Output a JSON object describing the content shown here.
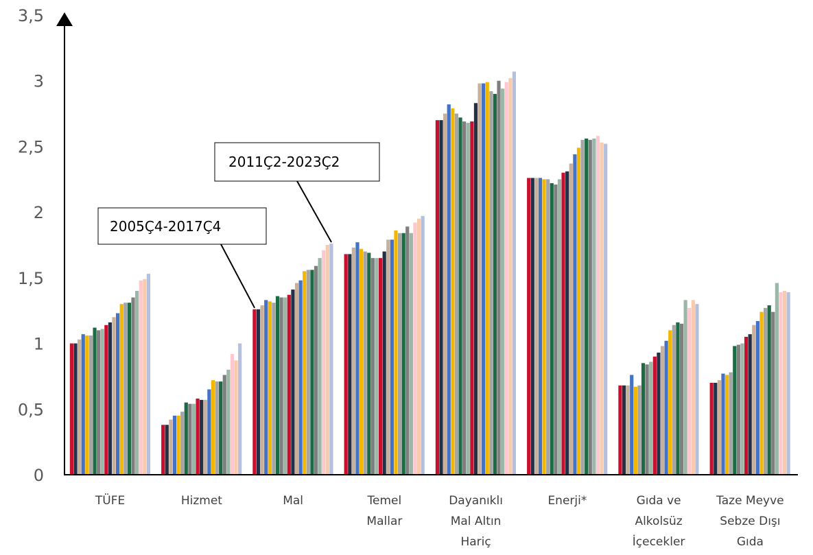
{
  "chart_data": {
    "type": "bar",
    "title": "",
    "xlabel": "",
    "ylabel": "",
    "ylim": [
      0,
      3.5
    ],
    "yticks": [
      "0",
      "0,5",
      "1",
      "1,5",
      "2",
      "2,5",
      "3",
      "3,5"
    ],
    "ytick_values": [
      0,
      0.5,
      1,
      1.5,
      2,
      2.5,
      3,
      3.5
    ],
    "grid": false,
    "legend": "none",
    "categories": [
      [
        "TÜFE"
      ],
      [
        "Hizmet"
      ],
      [
        "Mal"
      ],
      [
        "Temel",
        "Mallar"
      ],
      [
        "Dayanıklı",
        "Mal Altın",
        "Hariç"
      ],
      [
        "Enerji*"
      ],
      [
        "Gıda ve",
        "Alkolsüz",
        "İçecekler"
      ],
      [
        "Taze Meyve",
        "Sebze Dışı",
        "Gıda"
      ]
    ],
    "series_colors": [
      "#c8102e",
      "#233045",
      "#c9b09a",
      "#4472c4",
      "#f2b700",
      "#a5a5a5",
      "#1d6b45",
      "#7f7f7f",
      "#9bb7a8",
      "#c8102e",
      "#233045",
      "#c9b09a",
      "#4472c4",
      "#f2b700",
      "#a5a5a5",
      "#1d6b45",
      "#7f7f7f",
      "#9bb7a8",
      "#ffc7ce",
      "#f8cbad",
      "#b4c0de"
    ],
    "values": [
      [
        1.0,
        1.0,
        1.03,
        1.07,
        1.06,
        1.06,
        1.12,
        1.1,
        1.11,
        1.14,
        1.16,
        1.2,
        1.23,
        1.3,
        1.31,
        1.31,
        1.35,
        1.4,
        1.48,
        1.49,
        1.53
      ],
      [
        0.38,
        0.38,
        0.42,
        0.45,
        0.45,
        0.48,
        0.55,
        0.54,
        0.54,
        0.58,
        0.57,
        0.57,
        0.65,
        0.72,
        0.71,
        0.71,
        0.76,
        0.8,
        0.92,
        0.87,
        1.0
      ],
      [
        1.26,
        1.26,
        1.29,
        1.33,
        1.32,
        1.31,
        1.36,
        1.35,
        1.35,
        1.37,
        1.41,
        1.46,
        1.48,
        1.55,
        1.56,
        1.56,
        1.59,
        1.65,
        1.71,
        1.75,
        1.76
      ],
      [
        1.68,
        1.68,
        1.73,
        1.77,
        1.72,
        1.7,
        1.69,
        1.65,
        1.65,
        1.65,
        1.7,
        1.79,
        1.79,
        1.86,
        1.84,
        1.84,
        1.89,
        1.84,
        1.92,
        1.95,
        1.97
      ],
      [
        2.7,
        2.7,
        2.75,
        2.82,
        2.79,
        2.75,
        2.72,
        2.69,
        2.68,
        2.69,
        2.83,
        2.98,
        2.98,
        2.99,
        2.92,
        2.9,
        3.0,
        2.94,
        2.99,
        3.02,
        3.07
      ],
      [
        2.26,
        2.26,
        2.26,
        2.26,
        2.25,
        2.25,
        2.22,
        2.21,
        2.25,
        2.3,
        2.31,
        2.37,
        2.44,
        2.49,
        2.55,
        2.56,
        2.55,
        2.56,
        2.58,
        2.53,
        2.52
      ],
      [
        0.68,
        0.68,
        0.68,
        0.76,
        0.67,
        0.68,
        0.85,
        0.84,
        0.86,
        0.9,
        0.93,
        0.98,
        1.02,
        1.1,
        1.14,
        1.16,
        1.15,
        1.33,
        1.27,
        1.33,
        1.3
      ],
      [
        0.7,
        0.7,
        0.72,
        0.77,
        0.76,
        0.78,
        0.98,
        0.99,
        1.0,
        1.05,
        1.07,
        1.14,
        1.17,
        1.24,
        1.27,
        1.29,
        1.24,
        1.46,
        1.39,
        1.4,
        1.39
      ]
    ],
    "annotations": [
      {
        "text": "2005Ç4-2017Ç4",
        "category_index": 2,
        "bar_index": 0
      },
      {
        "text": "2011Ç2-2023Ç2",
        "category_index": 2,
        "bar_index": 20
      }
    ]
  }
}
